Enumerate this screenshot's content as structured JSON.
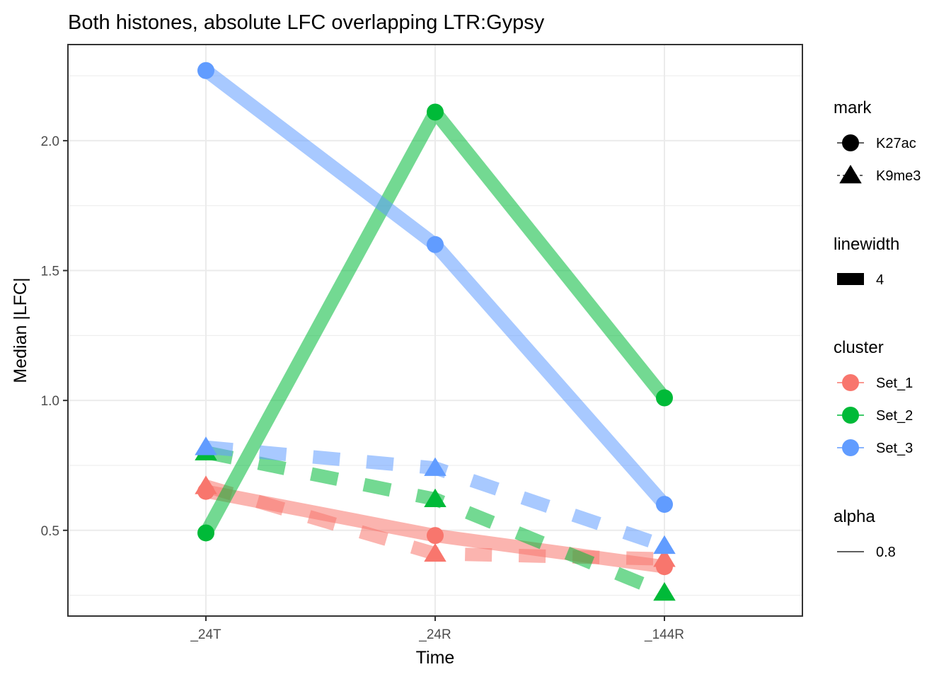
{
  "chart_data": {
    "type": "line",
    "title": "Both histones, absolute LFC overlapping LTR:Gypsy",
    "xlabel": "Time",
    "ylabel": "Median |LFC|",
    "categories": [
      "_24T",
      "_24R",
      "_144R"
    ],
    "ylim": [
      0.17,
      2.37
    ],
    "yticks": [
      0.5,
      1.0,
      1.5,
      2.0
    ],
    "ytick_labels": [
      "0.5",
      "1.0",
      "1.5",
      "2.0"
    ],
    "grid": true,
    "legend_position": "right",
    "series": [
      {
        "cluster": "Set_1",
        "mark": "K27ac",
        "values": [
          0.65,
          0.48,
          0.36
        ]
      },
      {
        "cluster": "Set_1",
        "mark": "K9me3",
        "values": [
          0.67,
          0.41,
          0.39
        ]
      },
      {
        "cluster": "Set_2",
        "mark": "K27ac",
        "values": [
          0.49,
          2.11,
          1.01
        ]
      },
      {
        "cluster": "Set_2",
        "mark": "K9me3",
        "values": [
          0.8,
          0.62,
          0.26
        ]
      },
      {
        "cluster": "Set_3",
        "mark": "K27ac",
        "values": [
          2.27,
          1.6,
          0.6
        ]
      },
      {
        "cluster": "Set_3",
        "mark": "K9me3",
        "values": [
          0.82,
          0.74,
          0.44
        ]
      }
    ],
    "legend": {
      "mark": {
        "title": "mark",
        "items": [
          "K27ac",
          "K9me3"
        ]
      },
      "linewidth": {
        "title": "linewidth",
        "items": [
          "4"
        ]
      },
      "cluster": {
        "title": "cluster",
        "items": [
          "Set_1",
          "Set_2",
          "Set_3"
        ]
      },
      "alpha": {
        "title": "alpha",
        "items": [
          "0.8"
        ]
      }
    },
    "colors": {
      "Set_1": "#F8766D",
      "Set_2": "#00BA38",
      "Set_3": "#619CFF"
    }
  }
}
